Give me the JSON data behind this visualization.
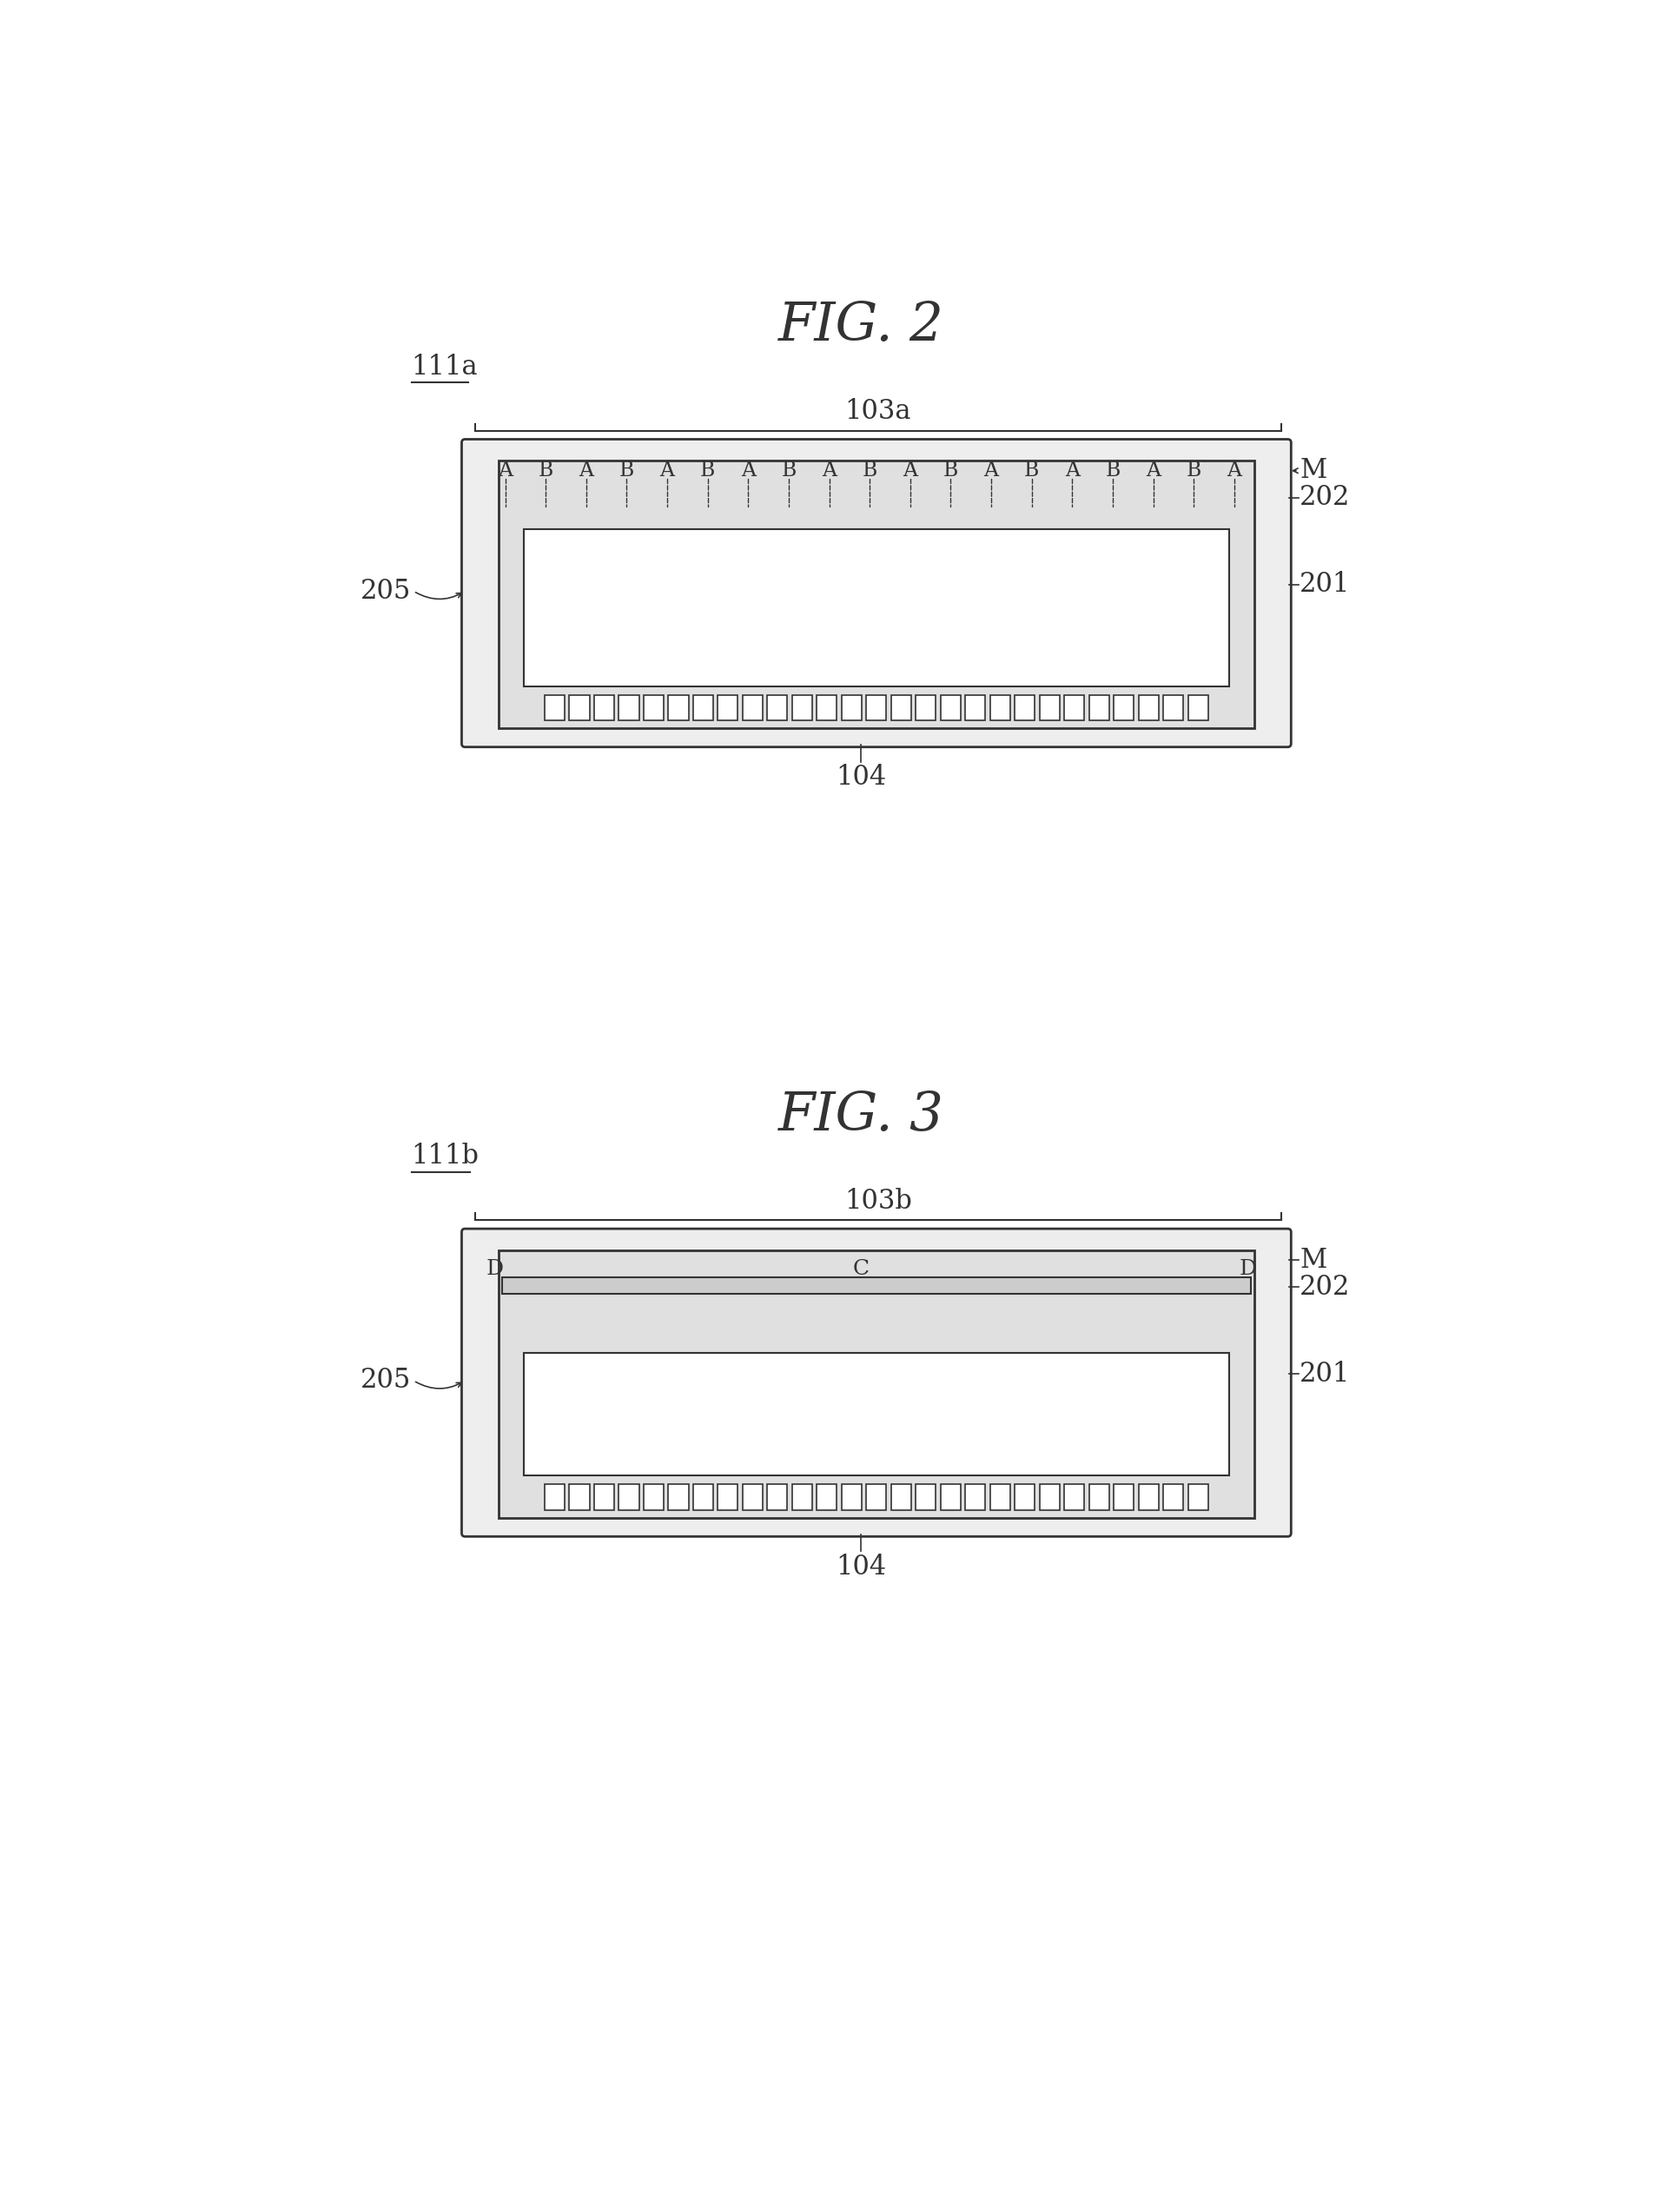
{
  "fig_title1": "FIG. 2",
  "fig_title2": "FIG. 3",
  "label_111a": "111a",
  "label_111b": "111b",
  "label_103a": "103a",
  "label_103b": "103b",
  "label_104": "104",
  "label_201": "201",
  "label_202": "202",
  "label_205": "205",
  "label_M": "M",
  "bg_color": "#ffffff",
  "line_color": "#333333",
  "outer_fill": "#eeeeee",
  "inner_fill": "#e0e0e0",
  "white": "#ffffff"
}
